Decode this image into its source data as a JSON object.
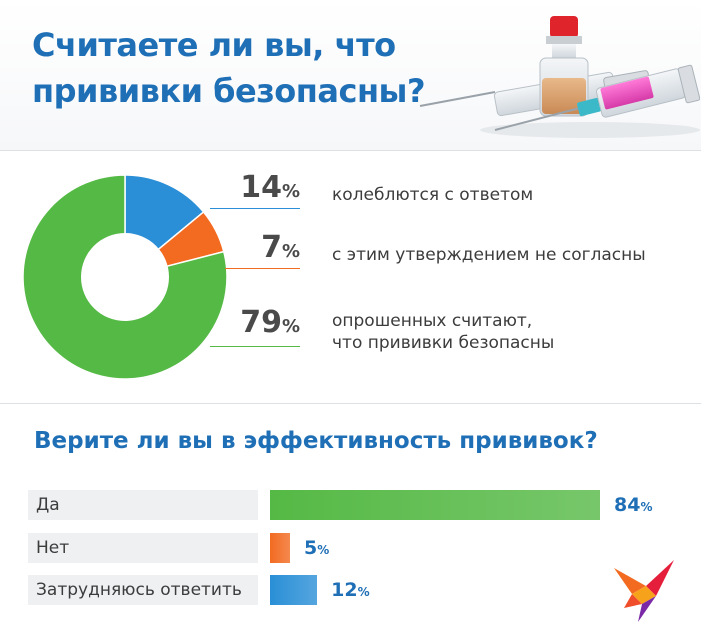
{
  "header": {
    "title": "Считаете ли вы, что прививки безопасны?"
  },
  "question2": {
    "title": "Верите ли вы в эффективность прививок?"
  },
  "colors": {
    "blue": "#2a8fd6",
    "orange": "#f26b21",
    "green": "#55b945",
    "title": "#1f6fb6"
  },
  "percent_symbol": "%",
  "chart_data": [
    {
      "type": "pie",
      "title": "Считаете ли вы, что прививки безопасны?",
      "categories": [
        "колеблются с ответом",
        "с этим утверждением не согласны",
        "опрошенных считают, что прививки безопасны"
      ],
      "values": [
        14,
        7,
        79
      ],
      "labels": [
        "14",
        "7",
        "79"
      ],
      "descriptions": [
        [
          "колеблются с ответом"
        ],
        [
          "с этим утверждением не согласны"
        ],
        [
          "опрошенных считают,",
          "что прививки безопасны"
        ]
      ],
      "colors": [
        "#2a8fd6",
        "#f26b21",
        "#55b945"
      ],
      "donut": true
    },
    {
      "type": "bar",
      "orientation": "horizontal",
      "title": "Верите ли вы в эффективность прививок?",
      "categories": [
        "Да",
        "Нет",
        "Затрудняюсь ответить"
      ],
      "values": [
        84,
        5,
        12
      ],
      "labels": [
        "84",
        "5",
        "12"
      ],
      "colors": [
        "#55b945",
        "#f26b21",
        "#2a8fd6"
      ],
      "xlim": [
        0,
        84
      ]
    }
  ]
}
